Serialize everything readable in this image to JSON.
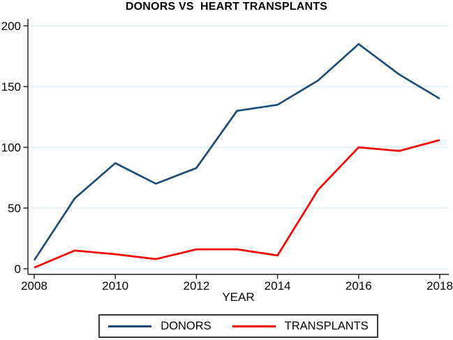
{
  "title": "DONORS VS  HEART TRANSPLANTS",
  "chart_data": {
    "type": "line",
    "title": "DONORS VS  HEART TRANSPLANTS",
    "x": [
      2008,
      2009,
      2010,
      2011,
      2012,
      2013,
      2014,
      2015,
      2016,
      2017,
      2018
    ],
    "series": [
      {
        "name": "DONORS",
        "color": "#1c4d78",
        "values": [
          7,
          58,
          87,
          70,
          83,
          130,
          135,
          155,
          185,
          160,
          140
        ]
      },
      {
        "name": "TRANSPLANTS",
        "color": "#fe0000",
        "values": [
          1,
          15,
          12,
          8,
          16,
          16,
          11,
          65,
          100,
          97,
          106
        ]
      }
    ],
    "xlabel": "YEAR",
    "ylabel": "",
    "xlim": [
      2008,
      2018
    ],
    "ylim": [
      0,
      200
    ],
    "x_ticks": [
      2008,
      2010,
      2012,
      2014,
      2016,
      2018
    ],
    "y_ticks": [
      0,
      50,
      100,
      150,
      200
    ],
    "grid": true,
    "gridline_color": "#dcedf2",
    "axis_color": "#1a1a1a",
    "legend_position": "bottom-center"
  }
}
